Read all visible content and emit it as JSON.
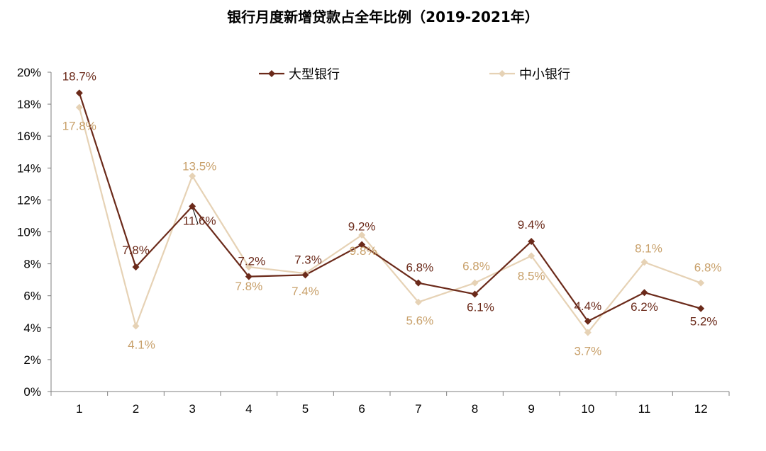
{
  "chart_data": {
    "type": "line",
    "title": "银行月度新增贷款占全年比例（2019-2021年）",
    "xlabel": "",
    "ylabel": "",
    "categories": [
      "1",
      "2",
      "3",
      "4",
      "5",
      "6",
      "7",
      "8",
      "9",
      "10",
      "11",
      "12"
    ],
    "ylim": [
      0,
      20
    ],
    "y_ticks": [
      "0%",
      "2%",
      "4%",
      "6%",
      "8%",
      "10%",
      "12%",
      "14%",
      "16%",
      "18%",
      "20%"
    ],
    "grid": false,
    "legend_position": "top",
    "series": [
      {
        "name": "大型银行",
        "color": "#6b2a1a",
        "marker": "diamond",
        "values": [
          18.7,
          7.8,
          11.6,
          7.2,
          7.3,
          9.2,
          6.8,
          6.1,
          9.4,
          4.4,
          6.2,
          5.2
        ],
        "labels": [
          "18.7%",
          "7.8%",
          "11.6%",
          "7.2%",
          "7.3%",
          "9.2%",
          "6.8%",
          "6.1%",
          "9.4%",
          "4.4%",
          "6.2%",
          "5.2%"
        ]
      },
      {
        "name": "中小银行",
        "color": "#e6d2b5",
        "label_color": "#c8a06a",
        "marker": "diamond",
        "values": [
          17.8,
          4.1,
          13.5,
          7.8,
          7.4,
          9.8,
          5.6,
          6.8,
          8.5,
          3.7,
          8.1,
          6.8
        ],
        "labels": [
          "17.8%",
          "4.1%",
          "13.5%",
          "7.8%",
          "7.4%",
          "9.8%",
          "5.6%",
          "6.8%",
          "8.5%",
          "3.7%",
          "8.1%",
          "6.8%"
        ]
      }
    ]
  }
}
